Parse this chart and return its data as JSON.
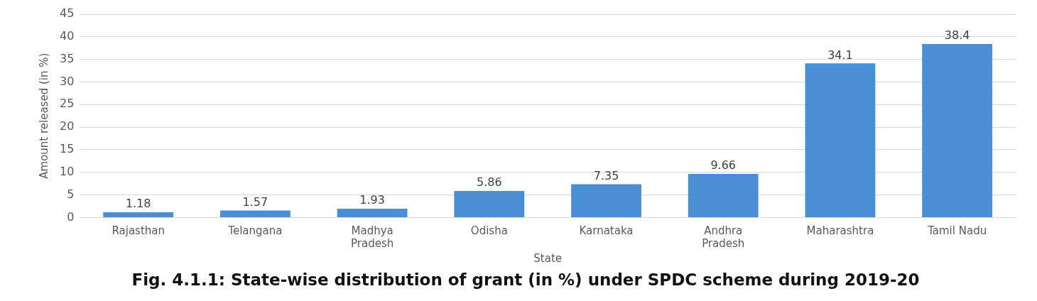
{
  "chart_data": {
    "type": "bar",
    "title": "Fig. 4.1.1: State-wise distribution of grant (in %) under SPDC scheme during 2019-20",
    "xlabel": "State",
    "ylabel": "Amount released (in %)",
    "categories": [
      "Rajasthan",
      "Telangana",
      "Madhya Pradesh",
      "Odisha",
      "Karnataka",
      "Andhra Pradesh",
      "Maharashtra",
      "Tamil Nadu"
    ],
    "values": [
      1.18,
      1.57,
      1.93,
      5.86,
      7.35,
      9.66,
      34.1,
      38.4
    ],
    "color": "#4a8fd6",
    "ylim": [
      0,
      45
    ],
    "yticks": [
      0,
      5,
      10,
      15,
      20,
      25,
      30,
      35,
      40,
      45
    ],
    "grid": "y",
    "data_labels": true
  }
}
